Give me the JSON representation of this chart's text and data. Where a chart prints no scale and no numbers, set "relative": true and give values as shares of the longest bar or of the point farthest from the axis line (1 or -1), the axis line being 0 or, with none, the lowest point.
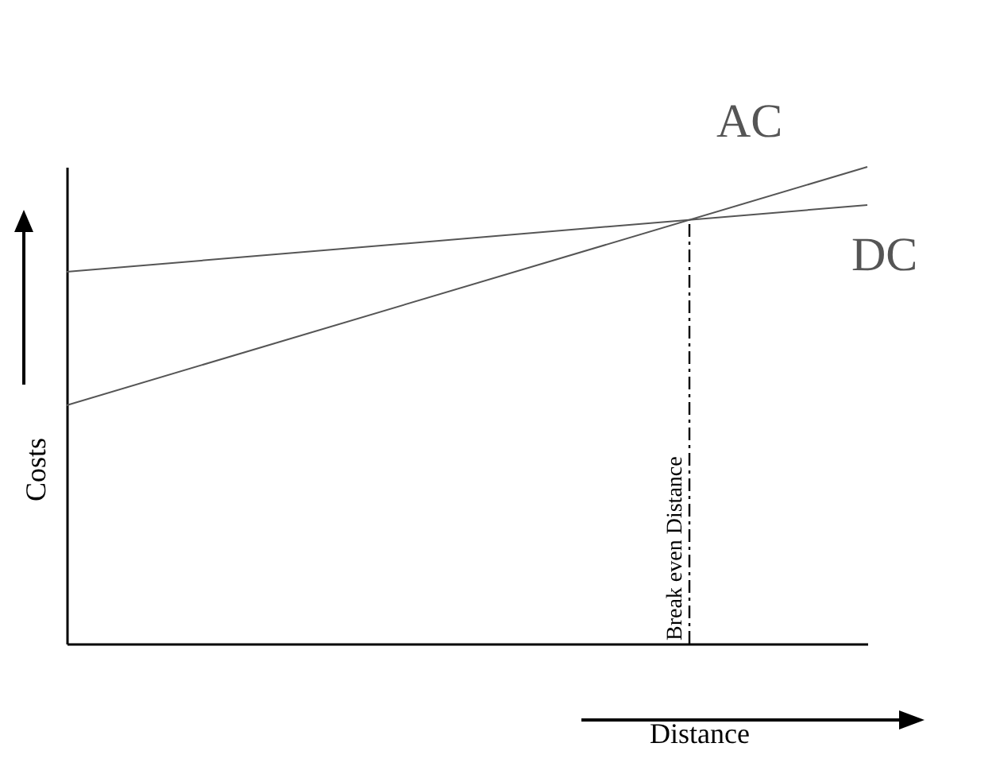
{
  "chart_data": {
    "type": "line",
    "relative": true,
    "categories": [
      null,
      null
    ],
    "xlabel": "Distance",
    "ylabel": "Costs",
    "marker": "none",
    "line_style": "solid",
    "series": [
      {
        "name": "AC",
        "color": "#555555",
        "values": [
          0.5,
          1
        ]
      },
      {
        "name": "DC",
        "color": "#555555",
        "values": [
          0.78,
          0.92
        ]
      }
    ],
    "annotations": [
      "Break even Distance"
    ]
  }
}
